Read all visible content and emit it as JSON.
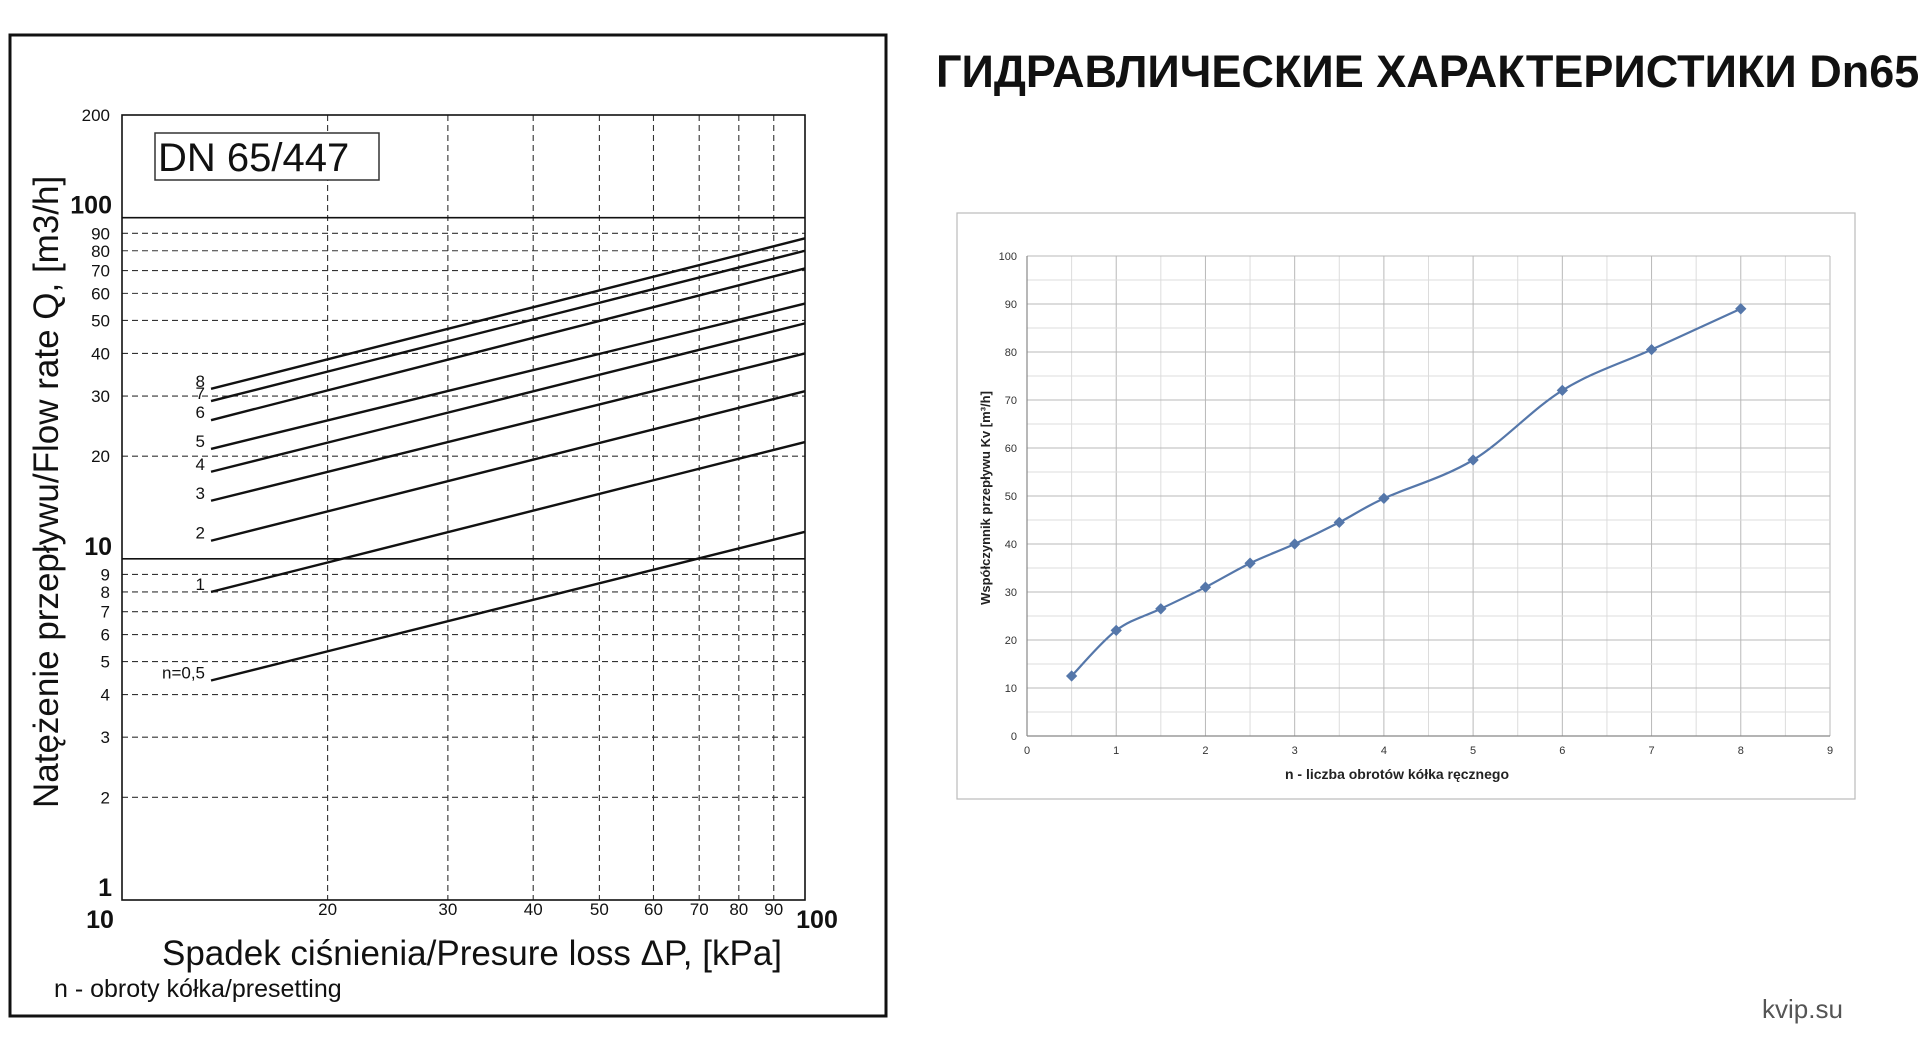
{
  "page": {
    "title": "ГИДРАВЛИЧЕСКИЕ ХАРАКТЕРИСТИКИ Dn65",
    "watermark": "kvip.su"
  },
  "chart_data": [
    {
      "type": "line",
      "title": "DN 65/447",
      "xlabel": "Spadek ciśnienia/Presure loss ΔP, [kPa]",
      "ylabel": "Natężenie przepływu/Flow rate Q, [m3/h]",
      "x_scale": "log",
      "y_scale": "log",
      "xlim": [
        10,
        100
      ],
      "ylim": [
        1,
        200
      ],
      "x_ticks": [
        "10",
        "20",
        "30",
        "40",
        "50",
        "60",
        "70",
        "80",
        "90",
        "100"
      ],
      "x_tick_values": [
        10,
        20,
        30,
        40,
        50,
        60,
        70,
        80,
        90,
        100
      ],
      "y_ticks": [
        "1",
        "2",
        "3",
        "4",
        "5",
        "6",
        "7",
        "8",
        "9",
        "10",
        "20",
        "30",
        "40",
        "50",
        "60",
        "70",
        "80",
        "90",
        "100",
        "200"
      ],
      "y_tick_values": [
        1,
        2,
        3,
        4,
        5,
        6,
        7,
        8,
        9,
        10,
        20,
        30,
        40,
        50,
        60,
        70,
        80,
        90,
        100,
        200
      ],
      "footnote": "n - obroty kółka/presetting",
      "grid": true,
      "series": [
        {
          "name": "n=0,5",
          "x": [
            13.5,
            100
          ],
          "y": [
            4.4,
            12
          ]
        },
        {
          "name": "1",
          "x": [
            13.5,
            100
          ],
          "y": [
            8,
            22
          ]
        },
        {
          "name": "2",
          "x": [
            13.5,
            100
          ],
          "y": [
            11.3,
            31
          ]
        },
        {
          "name": "3",
          "x": [
            13.5,
            100
          ],
          "y": [
            14.8,
            40
          ]
        },
        {
          "name": "4",
          "x": [
            13.5,
            100
          ],
          "y": [
            18,
            49
          ]
        },
        {
          "name": "5",
          "x": [
            13.5,
            100
          ],
          "y": [
            21,
            56
          ]
        },
        {
          "name": "6",
          "x": [
            13.5,
            100
          ],
          "y": [
            25.5,
            71
          ]
        },
        {
          "name": "7",
          "x": [
            13.5,
            100
          ],
          "y": [
            29,
            80
          ]
        },
        {
          "name": "8",
          "x": [
            13.5,
            100
          ],
          "y": [
            31.5,
            87
          ]
        }
      ]
    },
    {
      "type": "line",
      "title": "",
      "xlabel": "n - liczba obrotów kółka ręcznego",
      "ylabel": "Współczynnik przepływu Kv [m³/h]",
      "xlim": [
        0,
        9
      ],
      "ylim": [
        0,
        100
      ],
      "x_ticks": [
        "0",
        "1",
        "2",
        "3",
        "4",
        "5",
        "6",
        "7",
        "8",
        "9"
      ],
      "y_ticks": [
        "0",
        "10",
        "20",
        "30",
        "40",
        "50",
        "60",
        "70",
        "80",
        "90",
        "100"
      ],
      "grid": true,
      "color": "#5577aa",
      "x": [
        0.5,
        1,
        1.5,
        2,
        2.5,
        3,
        3.5,
        4,
        5,
        6,
        7,
        8
      ],
      "y": [
        12.5,
        22,
        26.5,
        31,
        36,
        40,
        44.5,
        49.5,
        57.5,
        72,
        80.5,
        89
      ]
    }
  ]
}
